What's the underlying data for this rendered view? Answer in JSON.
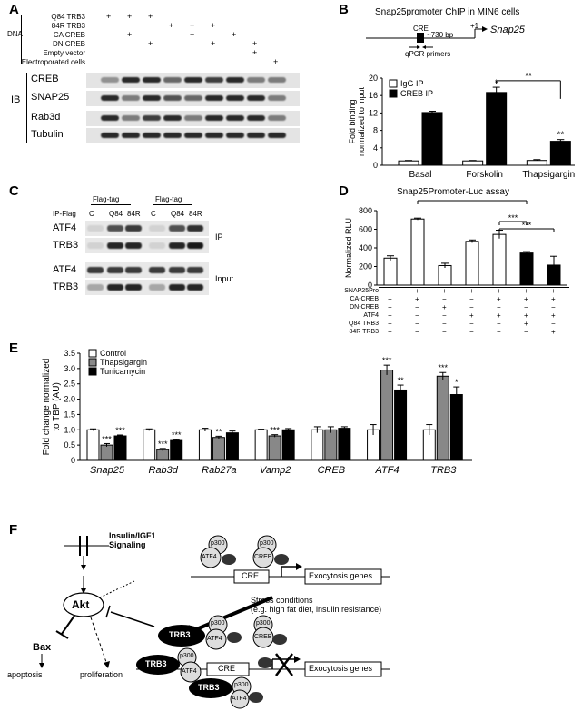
{
  "panels": {
    "a": "A",
    "b": "B",
    "c": "C",
    "d": "D",
    "e": "E",
    "f": "F"
  },
  "panel_a": {
    "dna_label": "DNA",
    "ib_label": "IB",
    "rows": [
      "Q84 TRB3",
      "84R TRB3",
      "CA CREB",
      "DN CREB",
      "Empty vector",
      "Electroporated cells"
    ],
    "signs": [
      [
        "+",
        "+",
        "+",
        "",
        "",
        "",
        "",
        "",
        ""
      ],
      [
        "",
        "",
        "",
        "+",
        "+",
        "+",
        "",
        "",
        ""
      ],
      [
        "",
        "+",
        "",
        "",
        "+",
        "",
        "+",
        "",
        ""
      ],
      [
        "",
        "",
        "+",
        "",
        "",
        "+",
        "",
        "+",
        ""
      ],
      [
        "",
        "",
        "",
        "",
        "",
        "",
        "",
        "+",
        ""
      ],
      [
        "",
        "",
        "",
        "",
        "",
        "",
        "",
        "",
        "+"
      ]
    ],
    "blots": [
      "CREB",
      "SNAP25",
      "Rab3d",
      "Tubulin"
    ]
  },
  "panel_b": {
    "title": "Snap25promoter ChIP in MIN6 cells",
    "cre": "CRE",
    "distance": "~730 bp",
    "plus1": "+1",
    "gene": "Snap25",
    "primers": "qPCR primers",
    "legend": [
      "IgG IP",
      "CREB IP"
    ],
    "ylabel_line1": "Fold binding",
    "ylabel_line2": "normalized to input",
    "yticks": [
      "0",
      "4",
      "8",
      "12",
      "16",
      "20"
    ],
    "categories": [
      "Basal",
      "Forskolin",
      "Thapsigargin"
    ],
    "sig": [
      "*",
      "**",
      "**"
    ]
  },
  "panel_c": {
    "ip_flag": "IP-Flag",
    "flag_tag": [
      "Flag-tag",
      "Flag-tag"
    ],
    "lanes": [
      "C",
      "Q84",
      "84R",
      "C",
      "Q84",
      "84R"
    ],
    "rows": [
      "ATF4",
      "TRB3",
      "ATF4",
      "TRB3"
    ],
    "groups": [
      "IP",
      "Input"
    ]
  },
  "panel_d": {
    "title": "Snap25Promoter-Luc assay",
    "ylabel": "Normalized RLU",
    "yticks": [
      "0",
      "200",
      "400",
      "600",
      "800"
    ],
    "sig": [
      "***",
      "***",
      "***",
      "***"
    ],
    "row_labels": [
      "SNAP25Pro",
      "CA-CREB",
      "DN-CREB",
      "ATF4",
      "Q84 TRB3",
      "84R TRB3"
    ],
    "signs": [
      [
        "+",
        "+",
        "+",
        "+",
        "+",
        "+",
        "+"
      ],
      [
        "−",
        "+",
        "−",
        "−",
        "+",
        "+",
        "+"
      ],
      [
        "−",
        "−",
        "+",
        "−",
        "−",
        "−",
        "−"
      ],
      [
        "−",
        "−",
        "−",
        "+",
        "+",
        "+",
        "+"
      ],
      [
        "−",
        "−",
        "−",
        "−",
        "−",
        "+",
        "−"
      ],
      [
        "−",
        "−",
        "−",
        "−",
        "−",
        "−",
        "+"
      ]
    ]
  },
  "panel_e": {
    "legend": [
      "Control",
      "Thapsigargin",
      "Tunicamycin"
    ],
    "ylabel_line1": "Fold change normalized",
    "ylabel_line2": "to TBP (AU)",
    "yticks": [
      "0",
      "0.5",
      "1.0",
      "1.5",
      "2.0",
      "2.5",
      "3.0",
      "3.5"
    ],
    "categories": [
      "Snap25",
      "Rab3d",
      "Rab27a",
      "Vamp2",
      "CREB",
      "ATF4",
      "TRB3"
    ],
    "sig": [
      [
        "***",
        "***"
      ],
      [
        "***",
        "***"
      ],
      [
        "**",
        ""
      ],
      [
        "***",
        ""
      ],
      [
        "",
        ""
      ],
      [
        "***",
        "**"
      ],
      [
        "***",
        "*"
      ]
    ]
  },
  "panel_f": {
    "insulin_line1": "Insulin/IGF1",
    "insulin_line2": "Signaling",
    "akt": "Akt",
    "bax": "Bax",
    "apoptosis": "apoptosis",
    "proliferation": "proliferation",
    "p300": "p300",
    "atf4": "ATF4",
    "creb": "CREB",
    "cre": "CRE",
    "trb3": "TRB3",
    "exocytosis": "Exocytosis genes",
    "stress_line1": "Stress conditions",
    "stress_line2": "(e.g. high fat diet, insulin resistance)"
  },
  "chart_data": [
    {
      "type": "bar",
      "ylabel": "Fold binding normalized to input",
      "categories": [
        "Basal",
        "Forskolin",
        "Thapsigargin"
      ],
      "ylim": [
        0,
        20
      ],
      "series": [
        {
          "name": "IgG IP",
          "values": [
            1.0,
            1.0,
            1.1
          ]
        },
        {
          "name": "CREB IP",
          "values": [
            12.1,
            16.7,
            5.5
          ]
        }
      ]
    },
    {
      "type": "bar",
      "title": "Snap25Promoter-Luc assay",
      "ylabel": "Normalized RLU",
      "ylim": [
        0,
        800
      ],
      "values": [
        290,
        710,
        210,
        470,
        545,
        345,
        215
      ]
    },
    {
      "type": "bar",
      "ylabel": "Fold change normalized to TBP (AU)",
      "categories": [
        "Snap25",
        "Rab3d",
        "Rab27a",
        "Vamp2",
        "CREB",
        "ATF4",
        "TRB3"
      ],
      "ylim": [
        0,
        3.5
      ],
      "series": [
        {
          "name": "Control",
          "values": [
            1.0,
            1.0,
            1.0,
            1.0,
            1.0,
            1.0,
            1.0
          ]
        },
        {
          "name": "Thapsigargin",
          "values": [
            0.5,
            0.35,
            0.75,
            0.8,
            1.0,
            2.95,
            2.75
          ]
        },
        {
          "name": "Tunicamycin",
          "values": [
            0.8,
            0.65,
            0.9,
            1.0,
            1.05,
            2.3,
            2.15
          ]
        }
      ]
    }
  ]
}
